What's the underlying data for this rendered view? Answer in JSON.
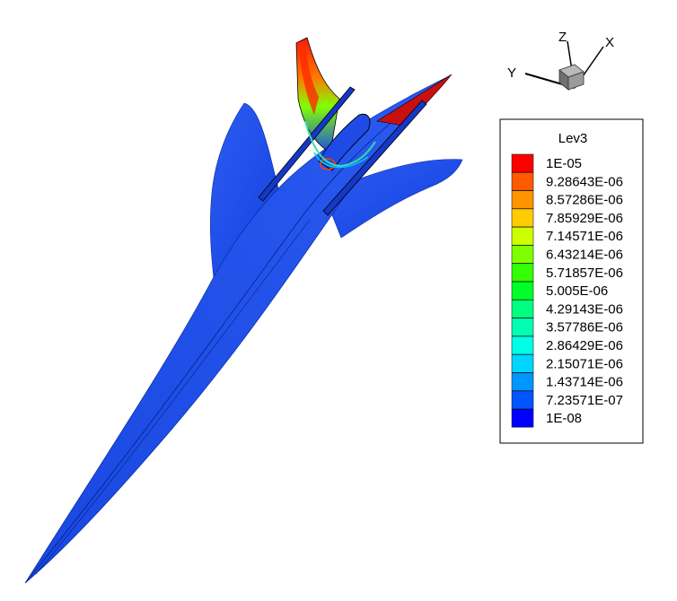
{
  "legend": {
    "title": "Lev3",
    "levels": [
      {
        "label": "1E-05",
        "color": "#ff0000"
      },
      {
        "label": "9.28643E-06",
        "color": "#ff5a00"
      },
      {
        "label": "8.57286E-06",
        "color": "#ff9400"
      },
      {
        "label": "7.85929E-06",
        "color": "#ffcc00"
      },
      {
        "label": "7.14571E-06",
        "color": "#ccff00"
      },
      {
        "label": "6.43214E-06",
        "color": "#80ff00"
      },
      {
        "label": "5.71857E-06",
        "color": "#33ff00"
      },
      {
        "label": "5.005E-06",
        "color": "#00ff26"
      },
      {
        "label": "4.29143E-06",
        "color": "#00ff80"
      },
      {
        "label": "3.57786E-06",
        "color": "#00ffb3"
      },
      {
        "label": "2.86429E-06",
        "color": "#00ffe6"
      },
      {
        "label": "2.15071E-06",
        "color": "#00d5ff"
      },
      {
        "label": "1.43714E-06",
        "color": "#0096ff"
      },
      {
        "label": "7.23571E-07",
        "color": "#0055ff"
      },
      {
        "label": "1E-08",
        "color": "#0000ff"
      }
    ]
  },
  "axes_triad": {
    "x_label": "X",
    "y_label": "Y",
    "z_label": "Z"
  },
  "colors": {
    "surface": "#1e4be6",
    "surface_dark": "#0f37c8",
    "hot": "#ff2a00"
  }
}
